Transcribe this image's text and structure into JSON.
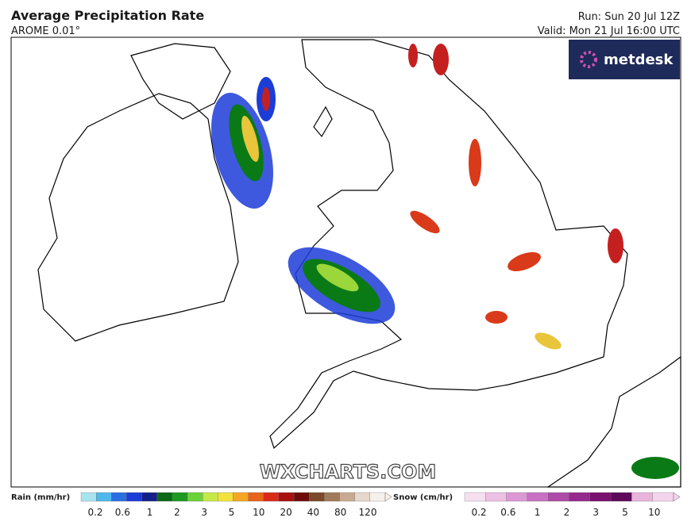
{
  "header": {
    "title": "Average Precipitation Rate",
    "model": "AROME 0.01°",
    "run": "Run: Sun 20 Jul 12Z",
    "valid": "Valid: Mon 21 Jul 16:00 UTC"
  },
  "logo": "metdesk",
  "watermark": "WXCHARTS.COM",
  "legend": {
    "rain": {
      "label": "Rain (mm/hr)",
      "ticks": [
        "0.2",
        "0.6",
        "1",
        "2",
        "3",
        "5",
        "10",
        "20",
        "40",
        "80",
        "120"
      ]
    },
    "snow": {
      "label": "Snow (cm/hr)",
      "ticks": [
        "0.2",
        "0.6",
        "1",
        "2",
        "3",
        "5",
        "10"
      ]
    }
  }
}
